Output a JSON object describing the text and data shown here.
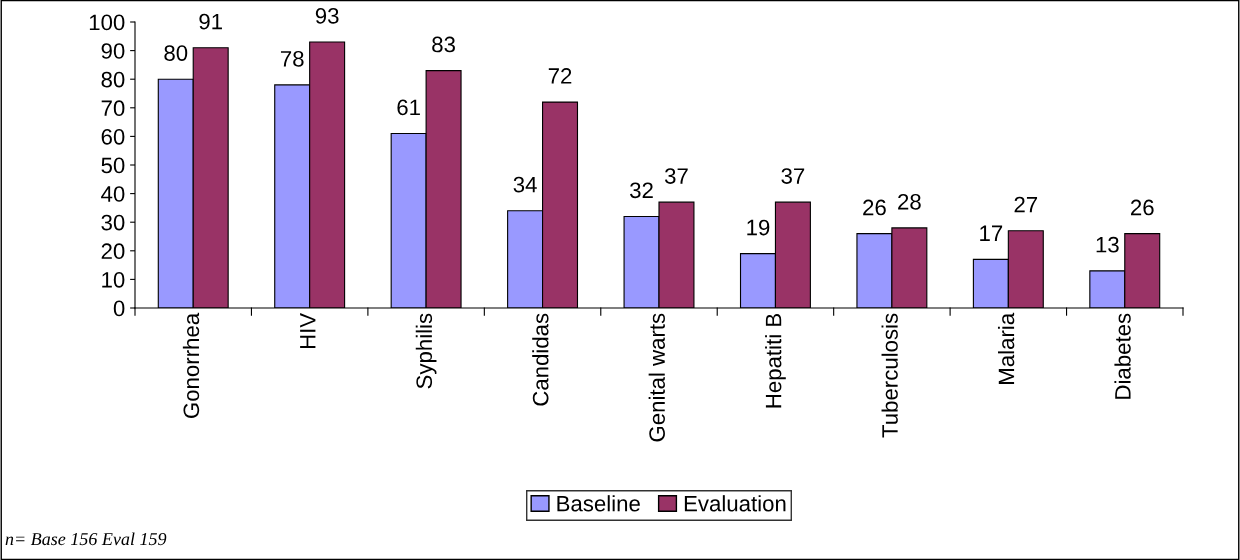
{
  "chart_data": {
    "type": "bar",
    "categories": [
      "Gonorrhea",
      "HIV",
      "Syphilis",
      "Candidas",
      "Genital warts",
      "Hepatiti B",
      "Tuberculosis",
      "Malaria",
      "Diabetes"
    ],
    "series": [
      {
        "name": "Baseline",
        "color": "#9999ff",
        "values": [
          80,
          78,
          61,
          34,
          32,
          19,
          26,
          17,
          13
        ]
      },
      {
        "name": "Evaluation",
        "color": "#993366",
        "values": [
          91,
          93,
          83,
          72,
          37,
          37,
          28,
          27,
          26
        ]
      }
    ],
    "ylim": [
      0,
      100
    ],
    "yticks": [
      0,
      10,
      20,
      30,
      40,
      50,
      60,
      70,
      80,
      90,
      100
    ],
    "data_labels": true,
    "grid": false,
    "legend": "bottom",
    "annotations": [
      "n= Base 156 Eval 159"
    ]
  }
}
